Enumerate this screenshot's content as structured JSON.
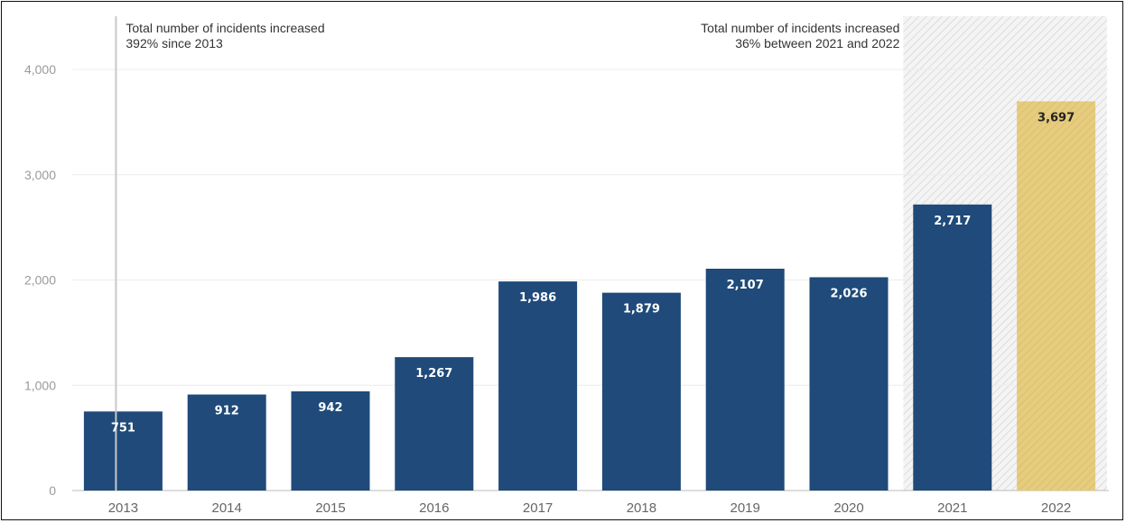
{
  "chart_data": {
    "type": "bar",
    "title": "",
    "xlabel": "",
    "ylabel": "",
    "categories": [
      "2013",
      "2014",
      "2015",
      "2016",
      "2017",
      "2018",
      "2019",
      "2020",
      "2021",
      "2022"
    ],
    "values": [
      751,
      912,
      942,
      1267,
      1986,
      1879,
      2107,
      2026,
      2717,
      3697
    ],
    "value_labels": [
      "751",
      "912",
      "942",
      "1,267",
      "1,986",
      "1,879",
      "2,107",
      "2,026",
      "2,717",
      "3,697"
    ],
    "ylim": [
      0,
      4000
    ],
    "yticks": [
      0,
      1000,
      2000,
      3000,
      4000
    ],
    "ytick_labels": [
      "0",
      "1,000",
      "2,000",
      "3,000",
      "4,000"
    ],
    "grid": true,
    "colors": {
      "bar": "#1f4a7a",
      "highlight_bar": "#e6cc7e",
      "label_on_bar": "#ffffff",
      "label_on_highlight": "#222222",
      "shaded_region": "#f2f2f2"
    },
    "highlight_category": "2022",
    "shaded_categories": [
      "2021",
      "2022"
    ],
    "annotations": [
      {
        "lines": [
          "Total number of incidents increased",
          "392% since 2013"
        ],
        "anchor_category": "2013",
        "align": "left"
      },
      {
        "lines": [
          "Total number of incidents increased",
          "36% between 2021 and 2022"
        ],
        "anchor_category": "2021",
        "align": "right"
      }
    ]
  }
}
